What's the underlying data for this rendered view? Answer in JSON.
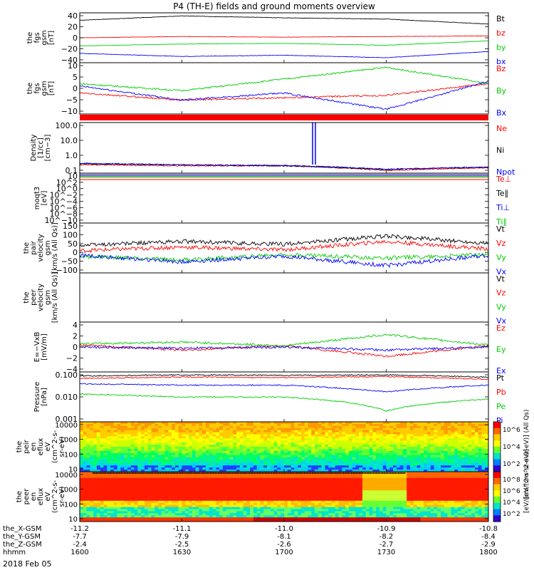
{
  "title": "P4 (TH-E) fields and ground moments overview",
  "date_label": "2018 Feb 05",
  "colors": {
    "black": "#000000",
    "red": "#ff0000",
    "green": "#00cc00",
    "blue": "#0000ff",
    "cyan": "#00c8ff",
    "frame": "#000000"
  },
  "x_axis": {
    "rows": [
      {
        "label": "the_X-GSM",
        "values": [
          "-11.2",
          "-11.1",
          "-11.0",
          "-10.9",
          "-10.8"
        ]
      },
      {
        "label": "the_Y-GSM",
        "values": [
          "-7.7",
          "-7.9",
          "-8.1",
          "-8.2",
          "-8.4"
        ]
      },
      {
        "label": "the_Z-GSM",
        "values": [
          "-2.4",
          "-2.5",
          "-2.6",
          "-2.7",
          "-2.9"
        ]
      },
      {
        "label": "hhmm",
        "values": [
          "1600",
          "1630",
          "1700",
          "1730",
          "1800"
        ]
      }
    ]
  },
  "colorbars": {
    "eir": {
      "label": "[eV/(cm^2-s-sr-eV)] (All Qs)",
      "ticks": [
        "10^6",
        "10^4",
        "10^2"
      ]
    },
    "eer": {
      "label": "[eV/(cm^2-s-sr-eV)]",
      "ticks": [
        "10^8",
        "10^6",
        "10^4",
        "10^2"
      ]
    }
  },
  "chart_data": [
    {
      "id": "fgs_gsm_total",
      "type": "line",
      "ylabel": [
        "the",
        "fgs",
        "gsm",
        "[nT]"
      ],
      "yticks": [
        "40",
        "20",
        "0",
        "−20",
        "−40"
      ],
      "ylim": [
        -40,
        40
      ],
      "x": [
        "1600",
        "1630",
        "1700",
        "1730",
        "1800"
      ],
      "series": [
        {
          "name": "Bt",
          "color": "#000000",
          "values": [
            28,
            35,
            32,
            30,
            22
          ]
        },
        {
          "name": "bz",
          "color": "#ff0000",
          "values": [
            0,
            2,
            1,
            2,
            3
          ]
        },
        {
          "name": "by",
          "color": "#00cc00",
          "values": [
            -13,
            -10,
            -9,
            -12,
            -5
          ]
        },
        {
          "name": "bx",
          "color": "#0000ff",
          "values": [
            -25,
            -30,
            -28,
            -32,
            -22
          ]
        }
      ]
    },
    {
      "id": "fgs_gsm_zoom",
      "type": "line",
      "ylabel": [
        "the",
        "fgs",
        "gsm",
        "[nT]"
      ],
      "yticks": [
        "10",
        "5",
        "0",
        "−5",
        "−10"
      ],
      "ylim": [
        -12,
        10
      ],
      "x": [
        "1600",
        "1630",
        "1700",
        "1730",
        "1800"
      ],
      "series": [
        {
          "name": "Bz",
          "color": "#ff0000",
          "values": [
            -3,
            -6,
            -5,
            -4,
            1
          ]
        },
        {
          "name": "By",
          "color": "#00cc00",
          "values": [
            1,
            -2,
            3,
            8,
            1
          ]
        },
        {
          "name": "Bx",
          "color": "#0000ff",
          "values": [
            0,
            -6,
            -3,
            -10,
            2
          ]
        }
      ]
    },
    {
      "id": "density",
      "type": "line",
      "ylabel": [
        "Density",
        "[1/cc]",
        "[cm−3]"
      ],
      "yticks": [
        "100.0",
        "10.0",
        "1.0",
        "0.1"
      ],
      "log": true,
      "ylim": [
        0.1,
        200
      ],
      "x": [
        "1600",
        "1630",
        "1700",
        "1730",
        "1800"
      ],
      "series": [
        {
          "name": "Ne",
          "color": "#ff0000",
          "values": [
            0.35,
            0.3,
            0.3,
            0.15,
            0.22
          ]
        },
        {
          "name": "Ni",
          "color": "#000000",
          "values": [
            0.4,
            0.35,
            0.3,
            0.17,
            0.25
          ]
        },
        {
          "name": "Npot",
          "color": "#0000ff",
          "values": [
            0.45,
            0.35,
            0.32,
            0.18,
            0.25
          ]
        }
      ]
    },
    {
      "id": "temperature",
      "type": "line",
      "ylabel": [
        "moqt3",
        "[eV]"
      ],
      "yticks": [
        "10",
        "10^2",
        "10^0",
        "10^−2",
        "10^−4",
        "10^−6",
        "10^−8",
        "10^−10"
      ],
      "log": true,
      "series": [
        {
          "name": "Te⊥",
          "color": "#ff0000"
        },
        {
          "name": "Te∥",
          "color": "#000000"
        },
        {
          "name": "Ti⊥",
          "color": "#0000ff"
        },
        {
          "name": "Ti∥",
          "color": "#00cc00"
        }
      ]
    },
    {
      "id": "pair_velocity",
      "type": "line",
      "ylabel": [
        "the",
        "pair",
        "velocity",
        "gsm",
        "[km/s (All Qs)]"
      ],
      "yticks": [
        "150",
        "100",
        "50",
        "0",
        "−50",
        "−100"
      ],
      "ylim": [
        -110,
        160
      ],
      "x": [
        "1600",
        "1630",
        "1700",
        "1730",
        "1800"
      ],
      "series": [
        {
          "name": "Vt",
          "color": "#000000",
          "values": [
            40,
            60,
            45,
            90,
            50
          ]
        },
        {
          "name": "Vz",
          "color": "#ff0000",
          "values": [
            10,
            30,
            15,
            60,
            20
          ]
        },
        {
          "name": "Vy",
          "color": "#00cc00",
          "values": [
            -20,
            -40,
            -10,
            -30,
            -10
          ]
        },
        {
          "name": "Vx",
          "color": "#0000ff",
          "values": [
            -15,
            -50,
            -20,
            -70,
            -15
          ]
        }
      ]
    },
    {
      "id": "peer_velocity",
      "type": "line",
      "ylabel": [
        "the",
        "peer",
        "velocity",
        "gsm",
        "[km/s (All Qs)]"
      ],
      "yticks": [],
      "series": [
        {
          "name": "Vt",
          "color": "#000000"
        },
        {
          "name": "Vz",
          "color": "#ff0000"
        },
        {
          "name": "Vy",
          "color": "#00cc00"
        },
        {
          "name": "Vx",
          "color": "#0000ff"
        }
      ]
    },
    {
      "id": "efield",
      "type": "line",
      "ylabel": [
        "E=−VxB",
        "[mV/m]"
      ],
      "yticks": [
        "4",
        "2",
        "0",
        "−2",
        "−4"
      ],
      "ylim": [
        -4,
        4
      ],
      "x": [
        "1600",
        "1630",
        "1700",
        "1730",
        "1800"
      ],
      "series": [
        {
          "name": "Ez",
          "color": "#ff0000",
          "values": [
            0.3,
            -0.5,
            0.2,
            -1.5,
            0.2
          ]
        },
        {
          "name": "Ey",
          "color": "#00cc00",
          "values": [
            0.5,
            0.8,
            0.2,
            2.0,
            0.3
          ]
        },
        {
          "name": "Ex",
          "color": "#0000ff",
          "values": [
            0,
            -0.2,
            0,
            -0.5,
            0
          ]
        }
      ]
    },
    {
      "id": "pressure",
      "type": "line",
      "ylabel": [
        "Pressure",
        "[nPa]"
      ],
      "yticks": [
        "0.100",
        "0.010",
        "0.001"
      ],
      "log": true,
      "ylim": [
        0.0007,
        0.6
      ],
      "x": [
        "1600",
        "1630",
        "1700",
        "1730",
        "1800"
      ],
      "series": [
        {
          "name": "Pt",
          "color": "#000000",
          "values": [
            0.35,
            0.4,
            0.38,
            0.4,
            0.3
          ]
        },
        {
          "name": "Pb",
          "color": "#ff0000",
          "values": [
            0.25,
            0.3,
            0.28,
            0.32,
            0.22
          ]
        },
        {
          "name": "Pe",
          "color": "#00cc00",
          "values": [
            0.03,
            0.02,
            0.02,
            0.003,
            0.015
          ]
        },
        {
          "name": "Pi",
          "color": "#0000ff",
          "values": [
            0.12,
            0.1,
            0.1,
            0.04,
            0.1
          ]
        }
      ]
    },
    {
      "id": "peir_spectrogram",
      "type": "heatmap",
      "ylabel": [
        "the",
        "peir",
        "en",
        "eflux",
        "eV",
        "(cm^2-s-",
        "sr-eV)"
      ],
      "yticks": [
        "10000",
        "1000",
        "100",
        "10"
      ],
      "log": true
    },
    {
      "id": "peer_spectrogram",
      "type": "heatmap",
      "ylabel": [
        "the",
        "peer",
        "en",
        "eflux",
        "eV",
        "(cm^2-s-",
        "sr-eV)"
      ],
      "yticks": [
        "10000",
        "1000",
        "100",
        "10"
      ],
      "log": true
    }
  ]
}
